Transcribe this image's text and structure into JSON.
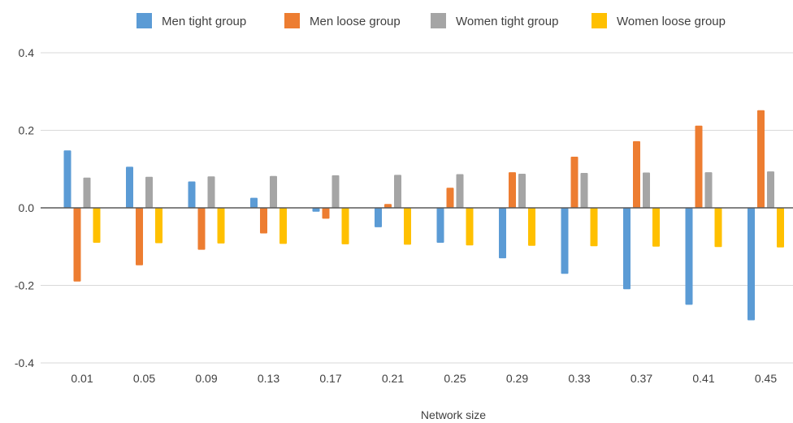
{
  "chart_data": {
    "type": "bar",
    "title": "",
    "xlabel": "Network size",
    "ylabel": "",
    "ylim": [
      -0.4,
      0.4
    ],
    "yticks": [
      0.4,
      0.2,
      0.0,
      -0.2,
      -0.4
    ],
    "ytick_labels": [
      "0.4",
      "0.2",
      "0.0",
      "-0.2",
      "-0.4"
    ],
    "grid": true,
    "legend_position": "top",
    "categories": [
      "0.01",
      "0.05",
      "0.09",
      "0.13",
      "0.17",
      "0.21",
      "0.25",
      "0.29",
      "0.33",
      "0.37",
      "0.41",
      "0.45"
    ],
    "series": [
      {
        "name": "Men tight group",
        "color": "#5B9BD5",
        "values": [
          0.148,
          0.106,
          0.068,
          0.026,
          -0.01,
          -0.05,
          -0.09,
          -0.13,
          -0.17,
          -0.21,
          -0.25,
          -0.29
        ]
      },
      {
        "name": "Men loose group",
        "color": "#ED7D31",
        "values": [
          -0.19,
          -0.148,
          -0.108,
          -0.066,
          -0.028,
          0.01,
          0.052,
          0.092,
          0.132,
          0.172,
          0.212,
          0.252
        ]
      },
      {
        "name": "Women tight group",
        "color": "#A5A5A5",
        "values": [
          0.078,
          0.08,
          0.081,
          0.082,
          0.084,
          0.085,
          0.087,
          0.088,
          0.09,
          0.091,
          0.092,
          0.094
        ]
      },
      {
        "name": "Women loose group",
        "color": "#FFC000",
        "values": [
          -0.09,
          -0.091,
          -0.092,
          -0.093,
          -0.094,
          -0.095,
          -0.097,
          -0.098,
          -0.099,
          -0.1,
          -0.101,
          -0.102
        ]
      }
    ]
  }
}
